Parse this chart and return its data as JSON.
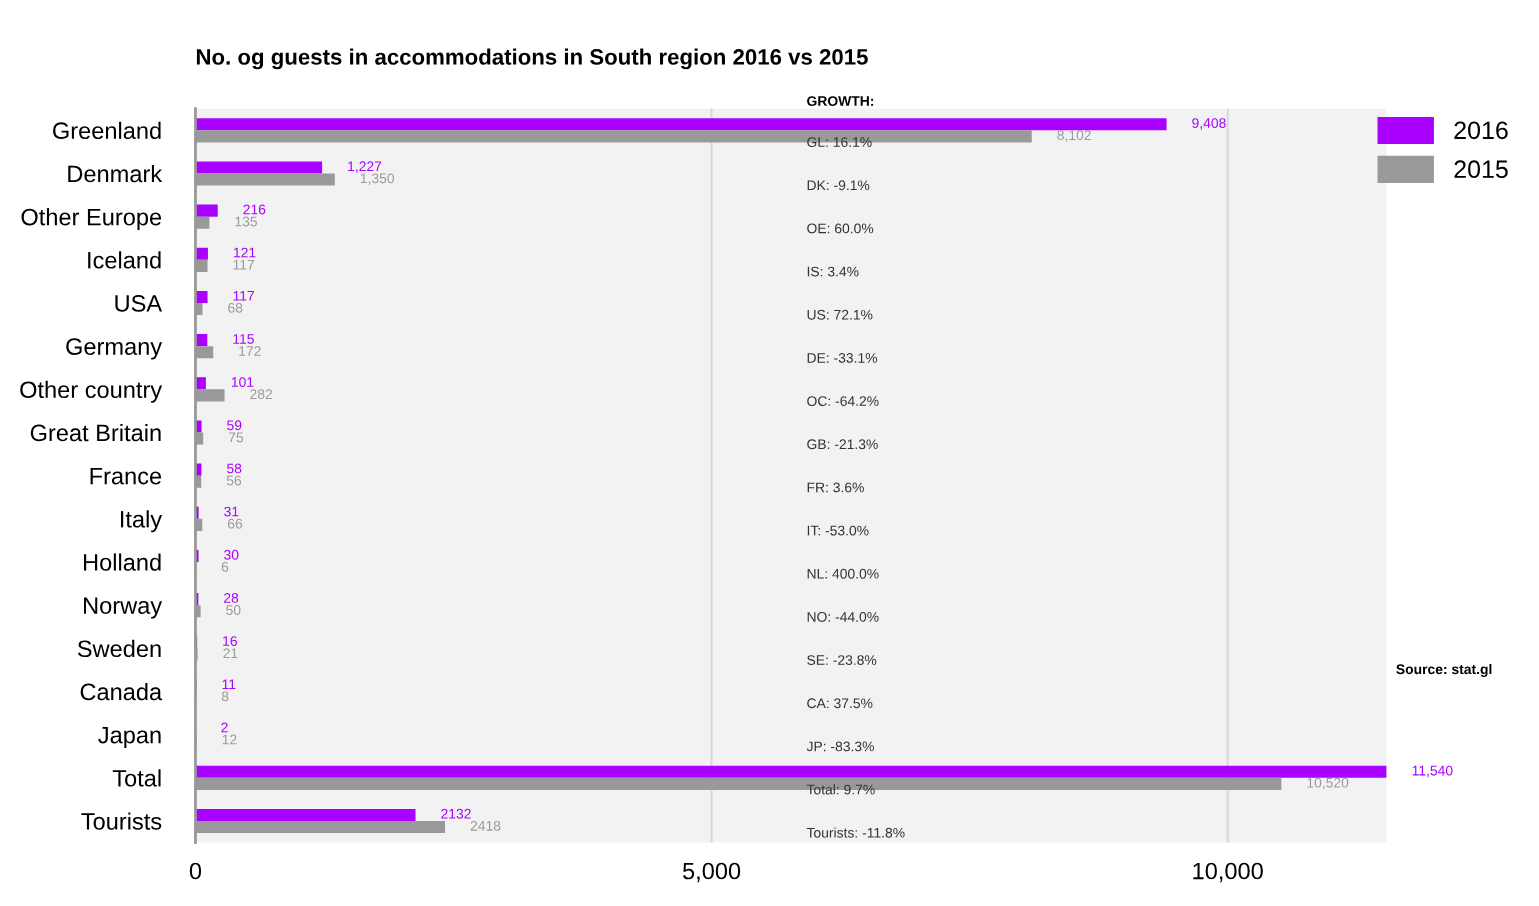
{
  "chart_data": {
    "type": "bar",
    "orientation": "horizontal",
    "title": "No. og guests in accommodations in South region 2016 vs 2015",
    "categories": [
      "Greenland",
      "Denmark",
      "Other Europe",
      "Iceland",
      "USA",
      "Germany",
      "Other country",
      "Great Britain",
      "France",
      "Italy",
      "Holland",
      "Norway",
      "Sweden",
      "Canada",
      "Japan",
      "Total",
      "Tourists"
    ],
    "series": [
      {
        "name": "2016",
        "color": "#aa00ff",
        "values": [
          9408,
          1227,
          216,
          121,
          117,
          115,
          101,
          59,
          58,
          31,
          30,
          28,
          16,
          11,
          2,
          11540,
          2132
        ],
        "value_labels": [
          "9,408",
          "1,227",
          "216",
          "121",
          "117",
          "115",
          "101",
          "59",
          "58",
          "31",
          "30",
          "28",
          "16",
          "11",
          "2",
          "11,540",
          "2132"
        ]
      },
      {
        "name": "2015",
        "color": "#999999",
        "values": [
          8102,
          1350,
          135,
          117,
          68,
          172,
          282,
          75,
          56,
          66,
          6,
          50,
          21,
          8,
          12,
          10520,
          2418
        ],
        "value_labels": [
          "8,102",
          "1,350",
          "135",
          "117",
          "68",
          "172",
          "282",
          "75",
          "56",
          "66",
          "6",
          "50",
          "21",
          "8",
          "12",
          "10,520",
          "2418"
        ]
      }
    ],
    "xlim": [
      0,
      11540
    ],
    "xticks": [
      0,
      {
        "value": 5000,
        "label": "5,000"
      },
      {
        "value": 10000,
        "label": "10,000"
      }
    ],
    "grid": "x",
    "legend": "top right",
    "annotations": [
      "GROWTH:",
      "GL: 16.1%",
      "DK: -9.1%",
      "OE: 60.0%",
      "IS: 3.4%",
      "US: 72.1%",
      "DE: -33.1%",
      "OC: -64.2%",
      "GB: -21.3%",
      "FR: 3.6%",
      "IT: -53.0%",
      "NL: 400.0%",
      "NO: -44.0%",
      "SE: -23.8%",
      "CA: 37.5%",
      "JP: -83.3%",
      "Total: 9.7%",
      "Tourists: -11.8%",
      "Source: stat.gl"
    ]
  }
}
